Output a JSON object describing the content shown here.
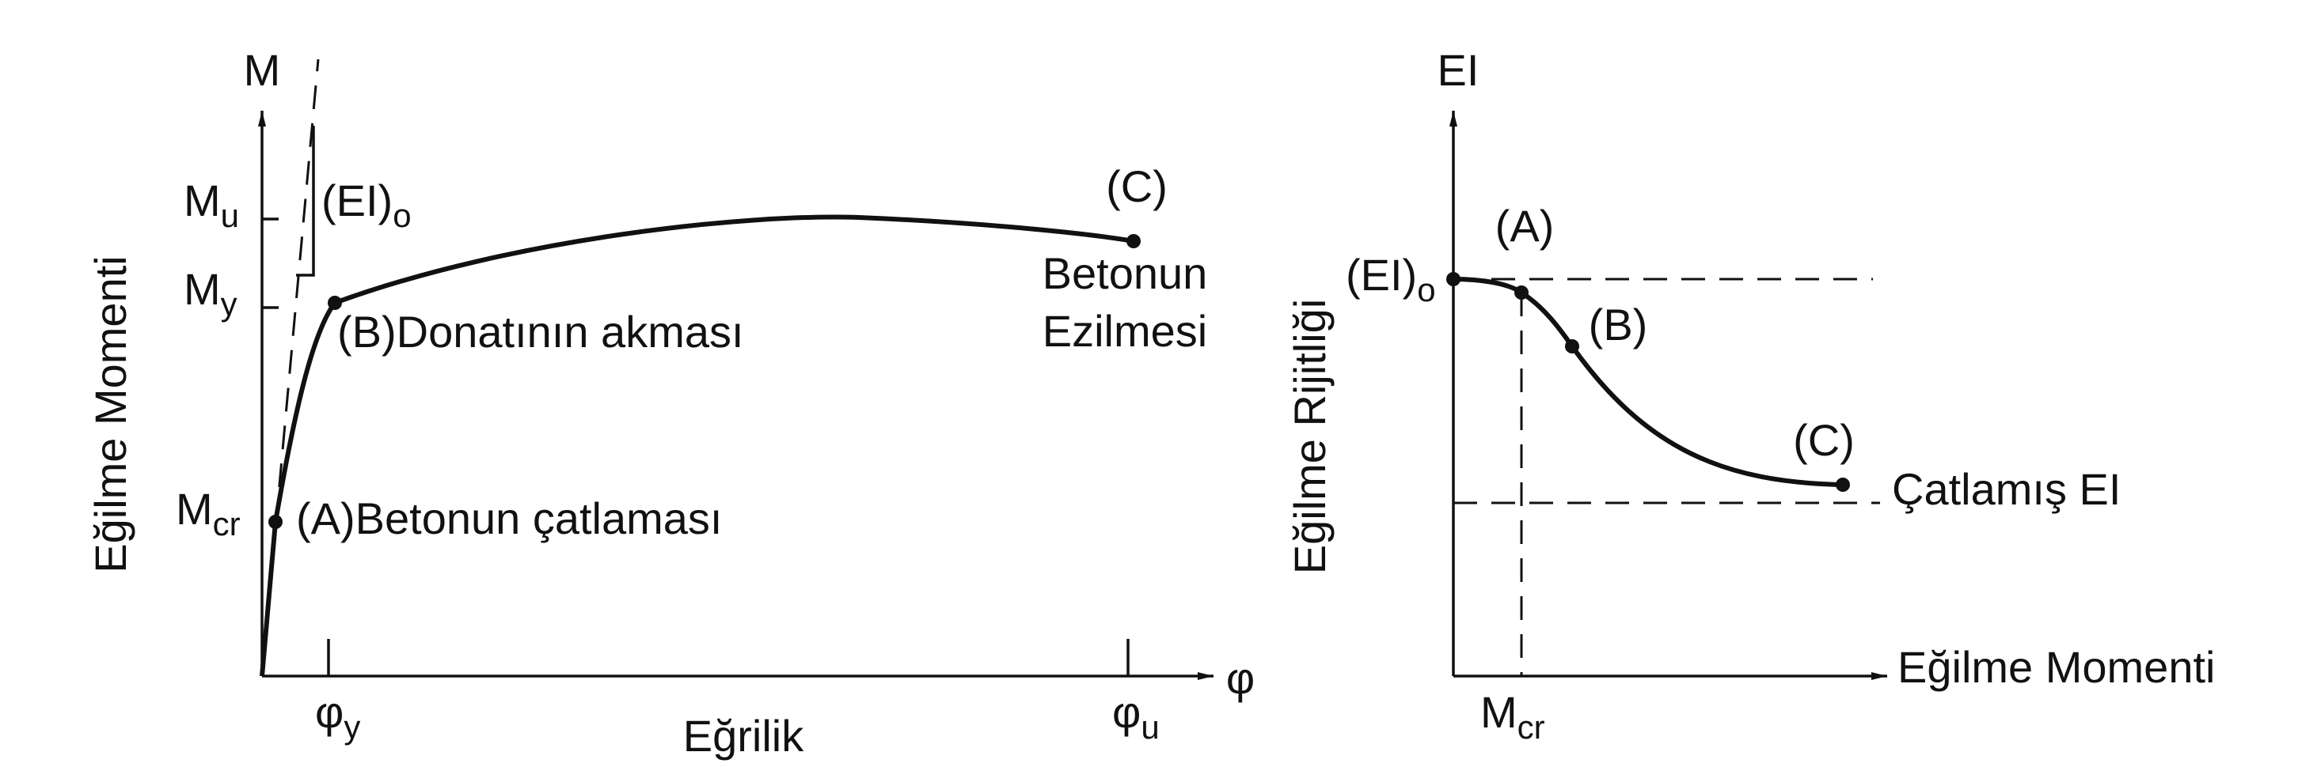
{
  "left": {
    "axis_y": "M",
    "axis_x": "φ",
    "y_title": "Eğilme Momenti",
    "x_title": "Eğrilik",
    "ticks_y": [
      {
        "main": "M",
        "sub": "u"
      },
      {
        "main": "M",
        "sub": "y"
      },
      {
        "main": "M",
        "sub": "cr"
      }
    ],
    "ticks_x": [
      {
        "main": "φ",
        "sub": "y"
      },
      {
        "main": "φ",
        "sub": "u"
      }
    ],
    "ei_label": {
      "main": "(EI)",
      "sub": "o"
    },
    "point_a": "(A)Betonun çatlaması",
    "point_b": "(B)Donatının akması",
    "point_c": "(C)",
    "point_c_note": [
      "Betonun",
      "Ezilmesi"
    ]
  },
  "right": {
    "axis_y": "EI",
    "y_title": "Eğilme Rijitliği",
    "x_title": "Eğilme Momenti",
    "ei_label": {
      "main": "(EI)",
      "sub": "o"
    },
    "point_a": "(A)",
    "point_b": "(B)",
    "point_c": "(C)",
    "cracked": "Çatlamış EI",
    "tick_x": {
      "main": "M",
      "sub": "cr"
    }
  }
}
